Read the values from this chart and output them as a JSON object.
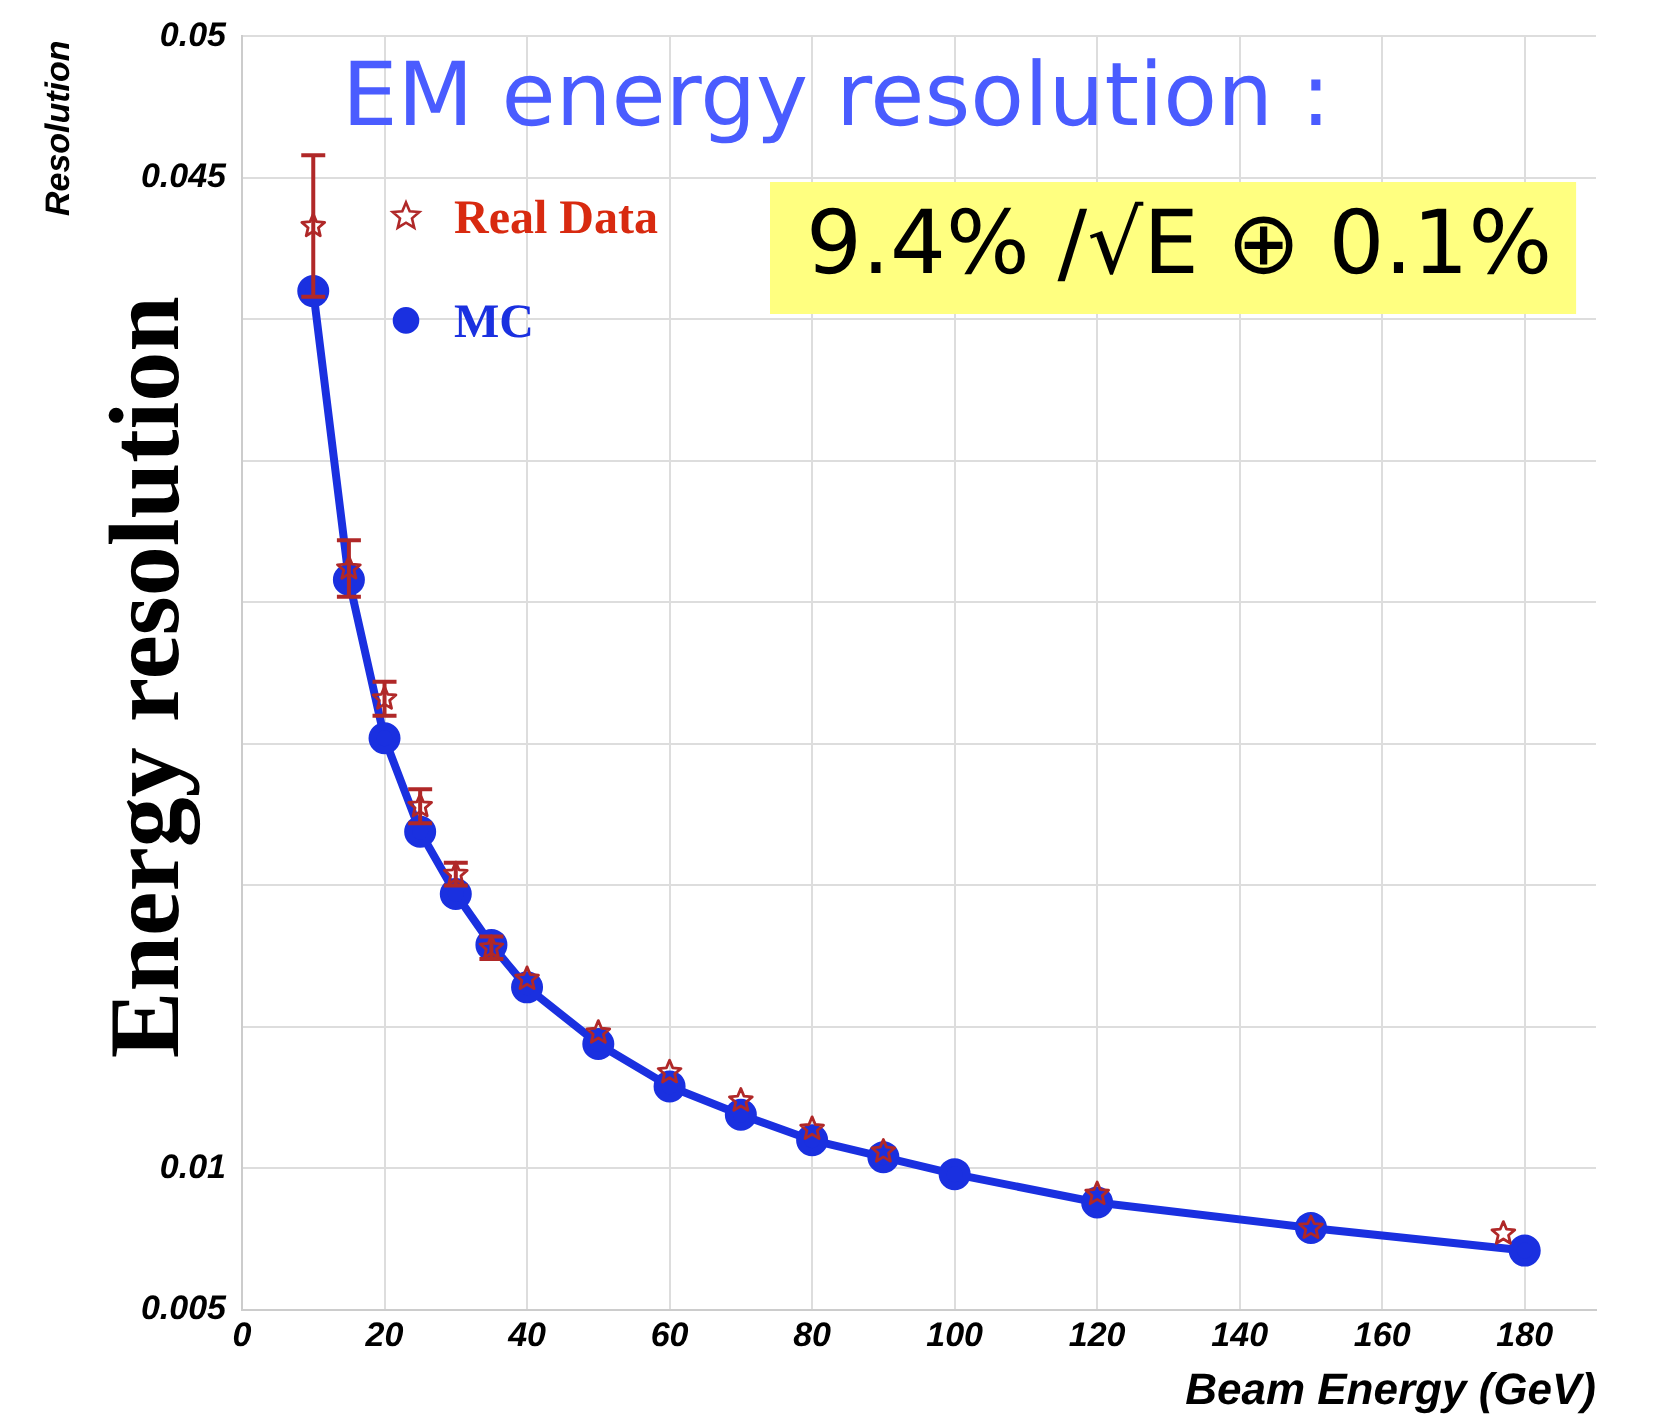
{
  "chart_data": {
    "type": "line",
    "title": "EM energy resolution :",
    "xlabel": "Beam Energy (GeV)",
    "ylabel": "Energy resolution",
    "annotations": [
      "Resolution",
      "9.4% /√E ⊕ 0.1%"
    ],
    "xlim": [
      0,
      190
    ],
    "xticks": [
      0,
      20,
      40,
      60,
      80,
      100,
      120,
      140,
      160,
      180
    ],
    "ylim": [
      0.005,
      0.05
    ],
    "yticks": [
      0.005,
      0.01,
      {
        "value": 0.015,
        "label": null
      },
      {
        "value": 0.02,
        "label": null
      },
      {
        "value": 0.025,
        "label": null
      },
      {
        "value": 0.03,
        "label": null
      },
      {
        "value": 0.035,
        "label": null
      },
      {
        "value": 0.04,
        "label": null
      },
      0.045,
      0.05
    ],
    "grid": true,
    "legend": "top left",
    "series": [
      {
        "name": "Real Data",
        "type": "scatter",
        "marker": "star",
        "color": "#b02828",
        "x": [
          10,
          15,
          20,
          25,
          30,
          35,
          40,
          50,
          60,
          70,
          80,
          90,
          120,
          150,
          177
        ],
        "values": [
          0.0433,
          0.0312,
          0.0266,
          0.0228,
          0.0204,
          0.0178,
          0.0167,
          0.0148,
          0.0134,
          0.0124,
          0.0114,
          0.0106,
          0.0091,
          0.0079,
          0.0077
        ],
        "errors": [
          0.0025,
          0.001,
          0.0006,
          0.0006,
          0.0004,
          0.0004,
          null,
          null,
          null,
          null,
          null,
          null,
          null,
          null,
          null
        ]
      },
      {
        "name": "MC",
        "type": "line",
        "marker": "circle",
        "line_style": "solid",
        "color": "#1a30e0",
        "x": [
          10,
          15,
          20,
          25,
          30,
          35,
          40,
          50,
          60,
          70,
          80,
          90,
          100,
          120,
          150,
          180
        ],
        "values": [
          0.041,
          0.0308,
          0.0252,
          0.0219,
          0.0197,
          0.0179,
          0.0164,
          0.0144,
          0.0129,
          0.0119,
          0.011,
          0.0104,
          0.0098,
          0.0088,
          0.0079,
          0.0071
        ]
      }
    ]
  }
}
